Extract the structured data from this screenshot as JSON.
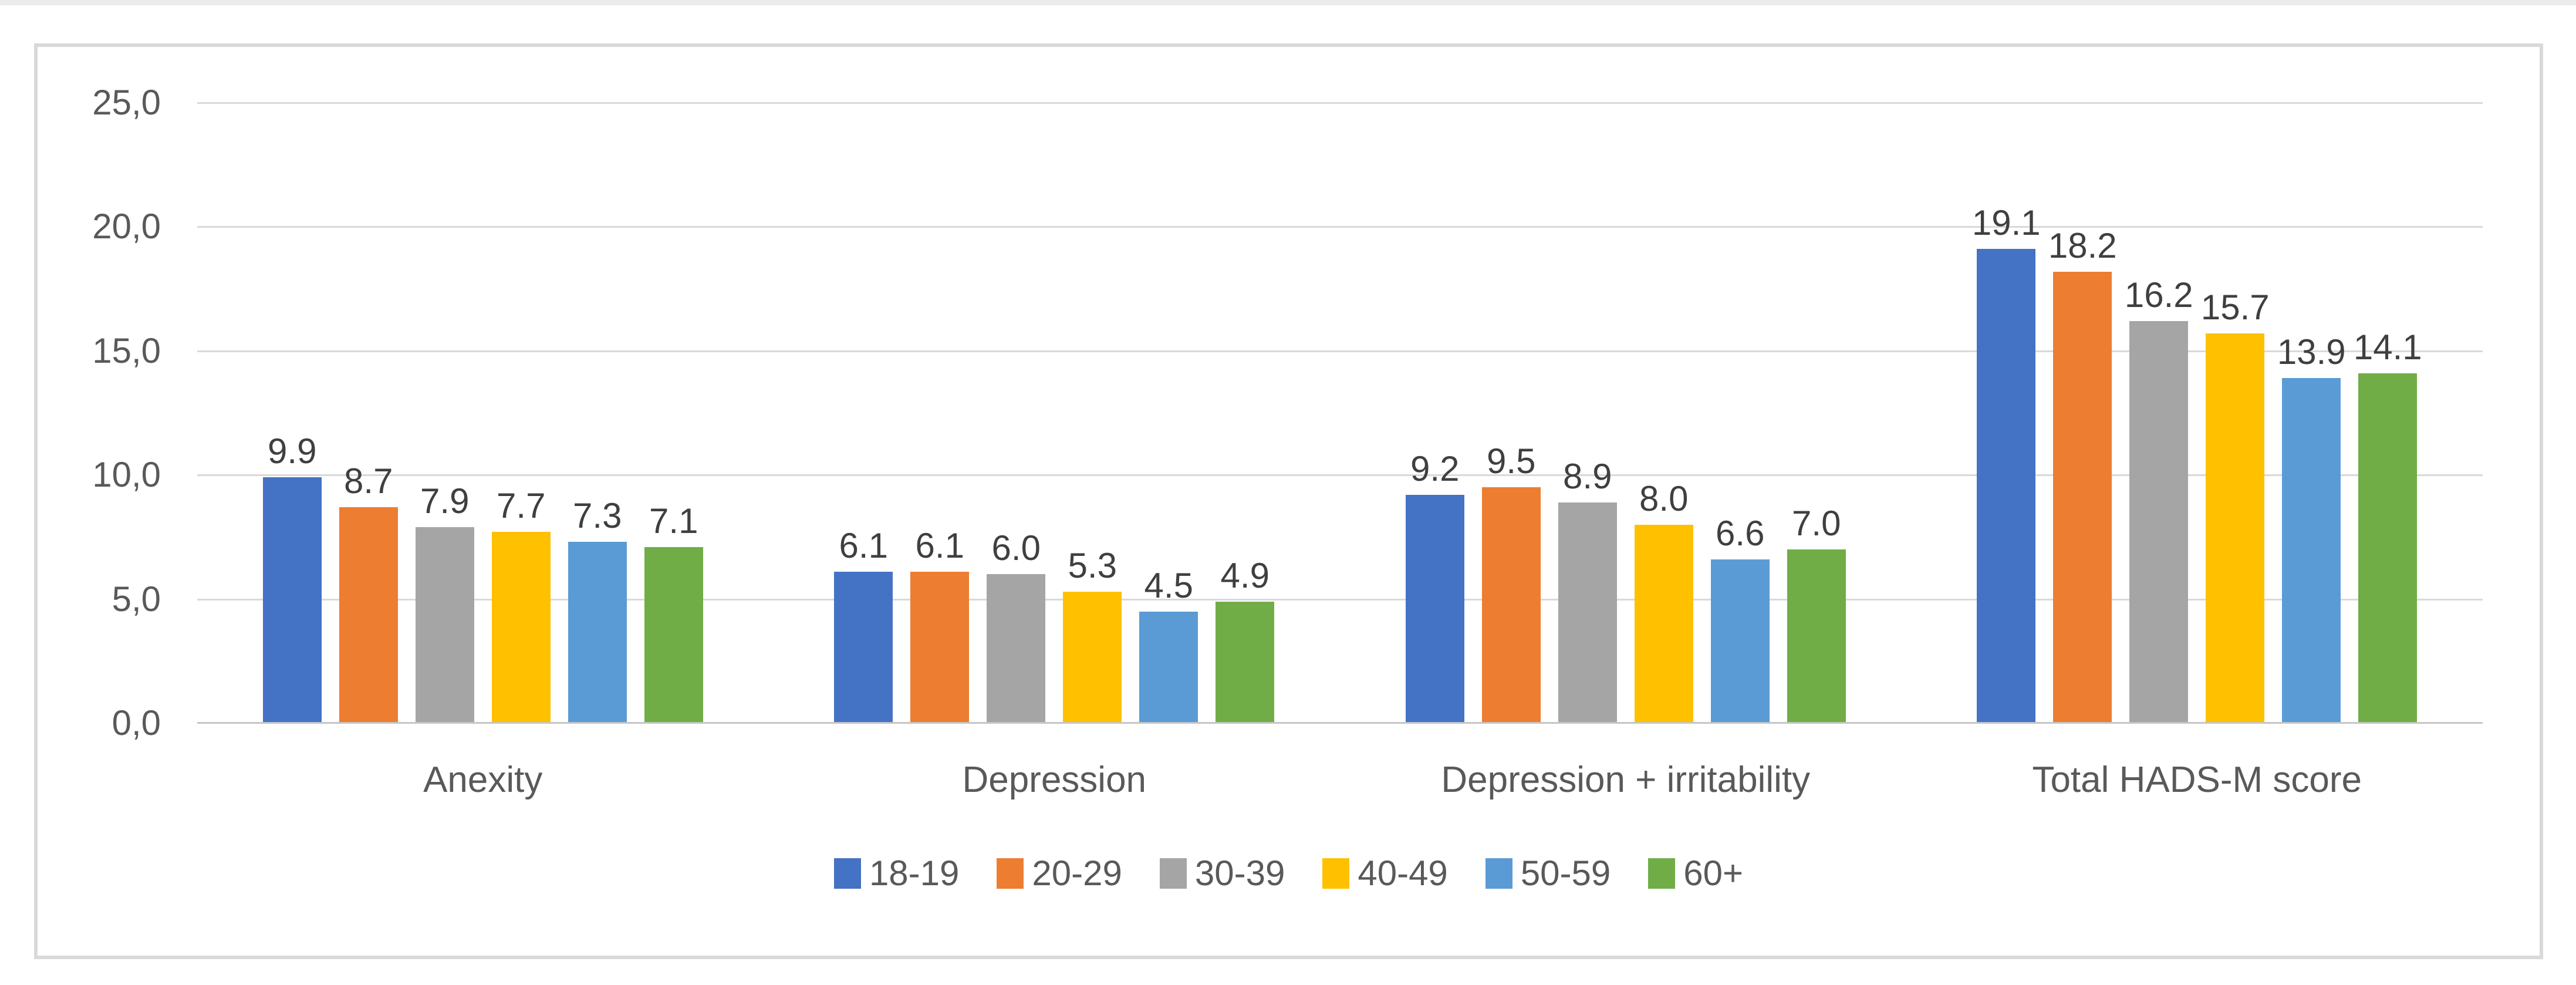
{
  "figure": {
    "background": "#ffffff",
    "border_color": "#d9d9d9"
  },
  "chart_data": {
    "type": "bar",
    "title": "",
    "xlabel": "",
    "ylabel": "",
    "categories": [
      "Anexity",
      "Depression",
      "Depression + irritability",
      "Total HADS-M score"
    ],
    "series": [
      {
        "name": "18-19",
        "color": "#4472C4",
        "values": [
          9.9,
          6.1,
          9.2,
          19.1
        ]
      },
      {
        "name": "20-29",
        "color": "#ED7D31",
        "values": [
          8.7,
          6.1,
          9.5,
          18.2
        ]
      },
      {
        "name": "30-39",
        "color": "#A5A5A5",
        "values": [
          7.9,
          6.0,
          8.9,
          16.2
        ]
      },
      {
        "name": "40-49",
        "color": "#FFC000",
        "values": [
          7.7,
          5.3,
          8.0,
          15.7
        ]
      },
      {
        "name": "50-59",
        "color": "#5B9BD5",
        "values": [
          7.3,
          4.5,
          6.6,
          13.9
        ]
      },
      {
        "name": "60+",
        "color": "#70AD47",
        "values": [
          7.1,
          4.9,
          7.0,
          14.1
        ]
      }
    ],
    "data_labels": [
      [
        "9.9",
        "6.1",
        "9.2",
        "19.1"
      ],
      [
        "8.7",
        "6.1",
        "9.5",
        "18.2"
      ],
      [
        "7.9",
        "6.0",
        "8.9",
        "16.2"
      ],
      [
        "7.7",
        "5.3",
        "8.0",
        "15.7"
      ],
      [
        "7.3",
        "4.5",
        "6.6",
        "13.9"
      ],
      [
        "7.1",
        "4.9",
        "7.0",
        "14.1"
      ]
    ],
    "y_axis": {
      "min": 0,
      "max": 25,
      "step": 5,
      "tick_labels": [
        "0,0",
        "5,0",
        "10,0",
        "15,0",
        "20,0",
        "25,0"
      ]
    },
    "grid": true,
    "legend_position": "bottom",
    "colors": {
      "gridline": "#d9d9d9",
      "axis_line": "#c6c6c6",
      "tick_text": "#595959",
      "category_text": "#595959",
      "data_label_text": "#3f3f3f",
      "legend_text": "#595959"
    }
  }
}
